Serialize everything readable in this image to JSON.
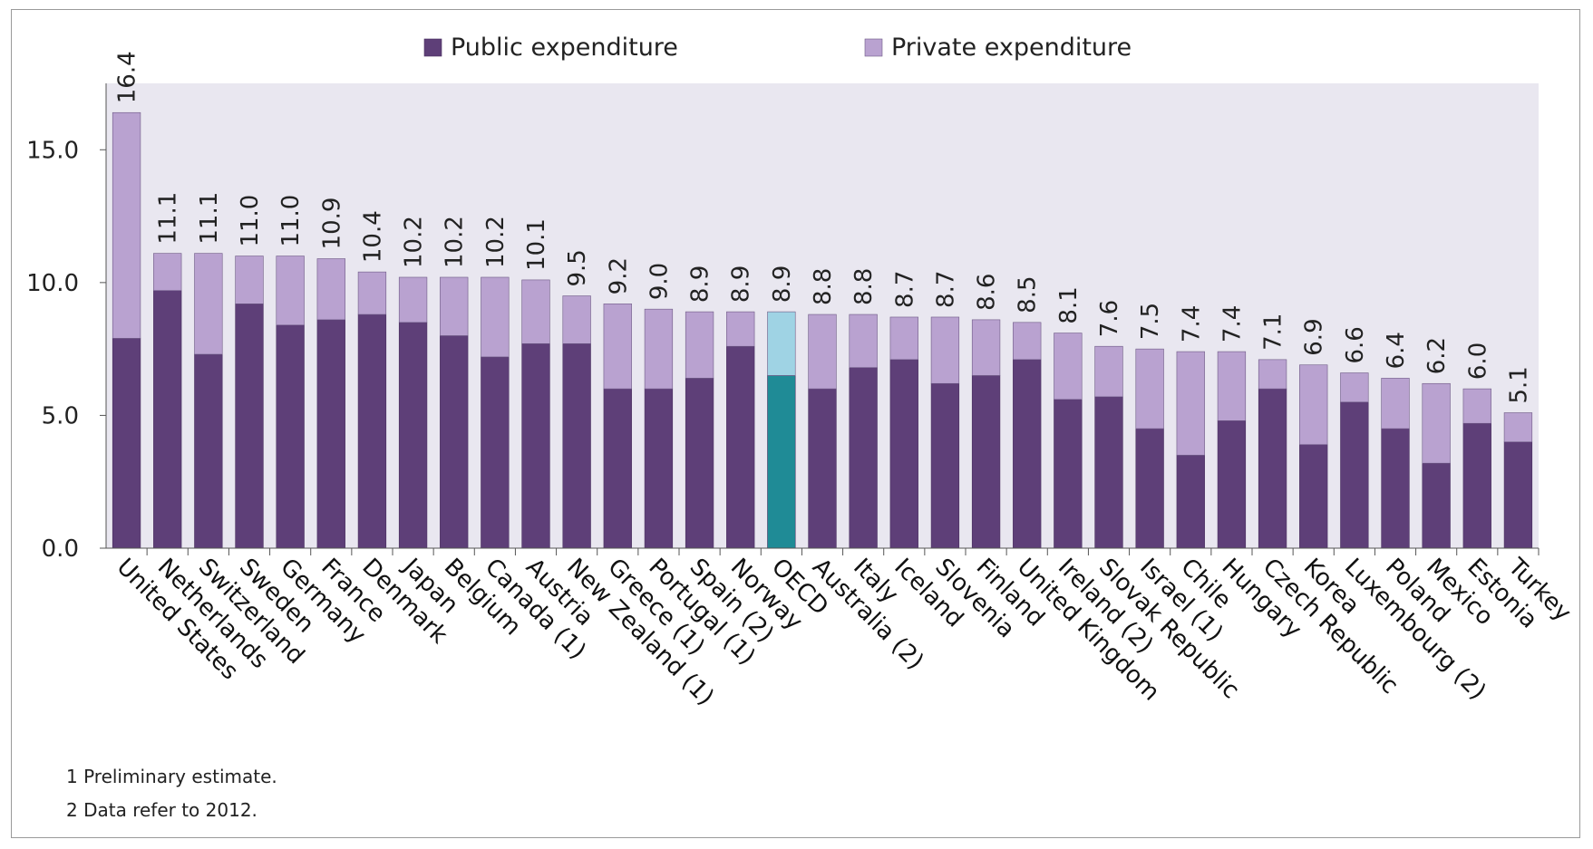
{
  "chart_data": {
    "type": "bar",
    "stacked": true,
    "title": "",
    "xlabel": "",
    "ylabel": "",
    "ylim": [
      0,
      17.5
    ],
    "yticks": [
      "0.0",
      "5.0",
      "10.0",
      "15.0"
    ],
    "legend": {
      "placement": "top-center",
      "items": [
        "Public expenditure",
        "Private expenditure"
      ]
    },
    "categories": [
      "United States",
      "Netherlands",
      "Switzerland",
      "Sweden",
      "Germany",
      "France",
      "Denmark",
      "Japan",
      "Belgium",
      "Canada (1)",
      "Austria",
      "New Zealand (1)",
      "Greece (1)",
      "Portugal (1)",
      "Spain (2)",
      "Norway",
      "OECD",
      "Australia (2)",
      "Italy",
      "Iceland",
      "Slovenia",
      "Finland",
      "United Kingdom",
      "Ireland (2)",
      "Slovak Republic",
      "Israel (1)",
      "Chile",
      "Hungary",
      "Czech Republic",
      "Korea",
      "Luxembourg (2)",
      "Poland",
      "Mexico",
      "Estonia",
      "Turkey"
    ],
    "series": [
      {
        "name": "Public expenditure",
        "values": [
          7.9,
          9.7,
          7.3,
          9.2,
          8.4,
          8.6,
          8.8,
          8.5,
          8.0,
          7.2,
          7.7,
          7.7,
          6.0,
          6.0,
          6.4,
          7.6,
          6.5,
          6.0,
          6.8,
          7.1,
          6.2,
          6.5,
          7.1,
          5.6,
          5.7,
          4.5,
          3.5,
          4.8,
          6.0,
          3.9,
          5.5,
          4.5,
          3.2,
          4.7,
          4.0
        ]
      },
      {
        "name": "Private expenditure",
        "values": [
          8.5,
          1.4,
          3.8,
          1.8,
          2.6,
          2.3,
          1.6,
          1.7,
          2.2,
          3.0,
          2.4,
          1.8,
          3.2,
          3.0,
          2.5,
          1.3,
          2.4,
          2.8,
          2.0,
          1.6,
          2.5,
          2.1,
          1.4,
          2.5,
          1.9,
          3.0,
          3.9,
          2.6,
          1.1,
          3.0,
          1.1,
          1.9,
          3.0,
          1.3,
          1.1
        ]
      }
    ],
    "total_labels": [
      "16.4",
      "11.1",
      "11.1",
      "11.0",
      "11.0",
      "10.9",
      "10.4",
      "10.2",
      "10.2",
      "10.2",
      "10.1",
      "9.5",
      "9.2",
      "9.0",
      "8.9",
      "8.9",
      "8.9",
      "8.8",
      "8.8",
      "8.7",
      "8.7",
      "8.6",
      "8.5",
      "8.1",
      "7.6",
      "7.5",
      "7.4",
      "7.4",
      "7.1",
      "6.9",
      "6.6",
      "6.4",
      "6.2",
      "6.0",
      "5.1"
    ],
    "highlight_category": "OECD",
    "colors": {
      "public": "#5e3f78",
      "private": "#b9a2d0",
      "public_highlight": "#1f8b96",
      "private_highlight": "#9fd3e4",
      "plot_background": "#e9e7f0"
    },
    "footnotes": [
      "1 Preliminary estimate.",
      "2 Data refer to 2012."
    ]
  }
}
